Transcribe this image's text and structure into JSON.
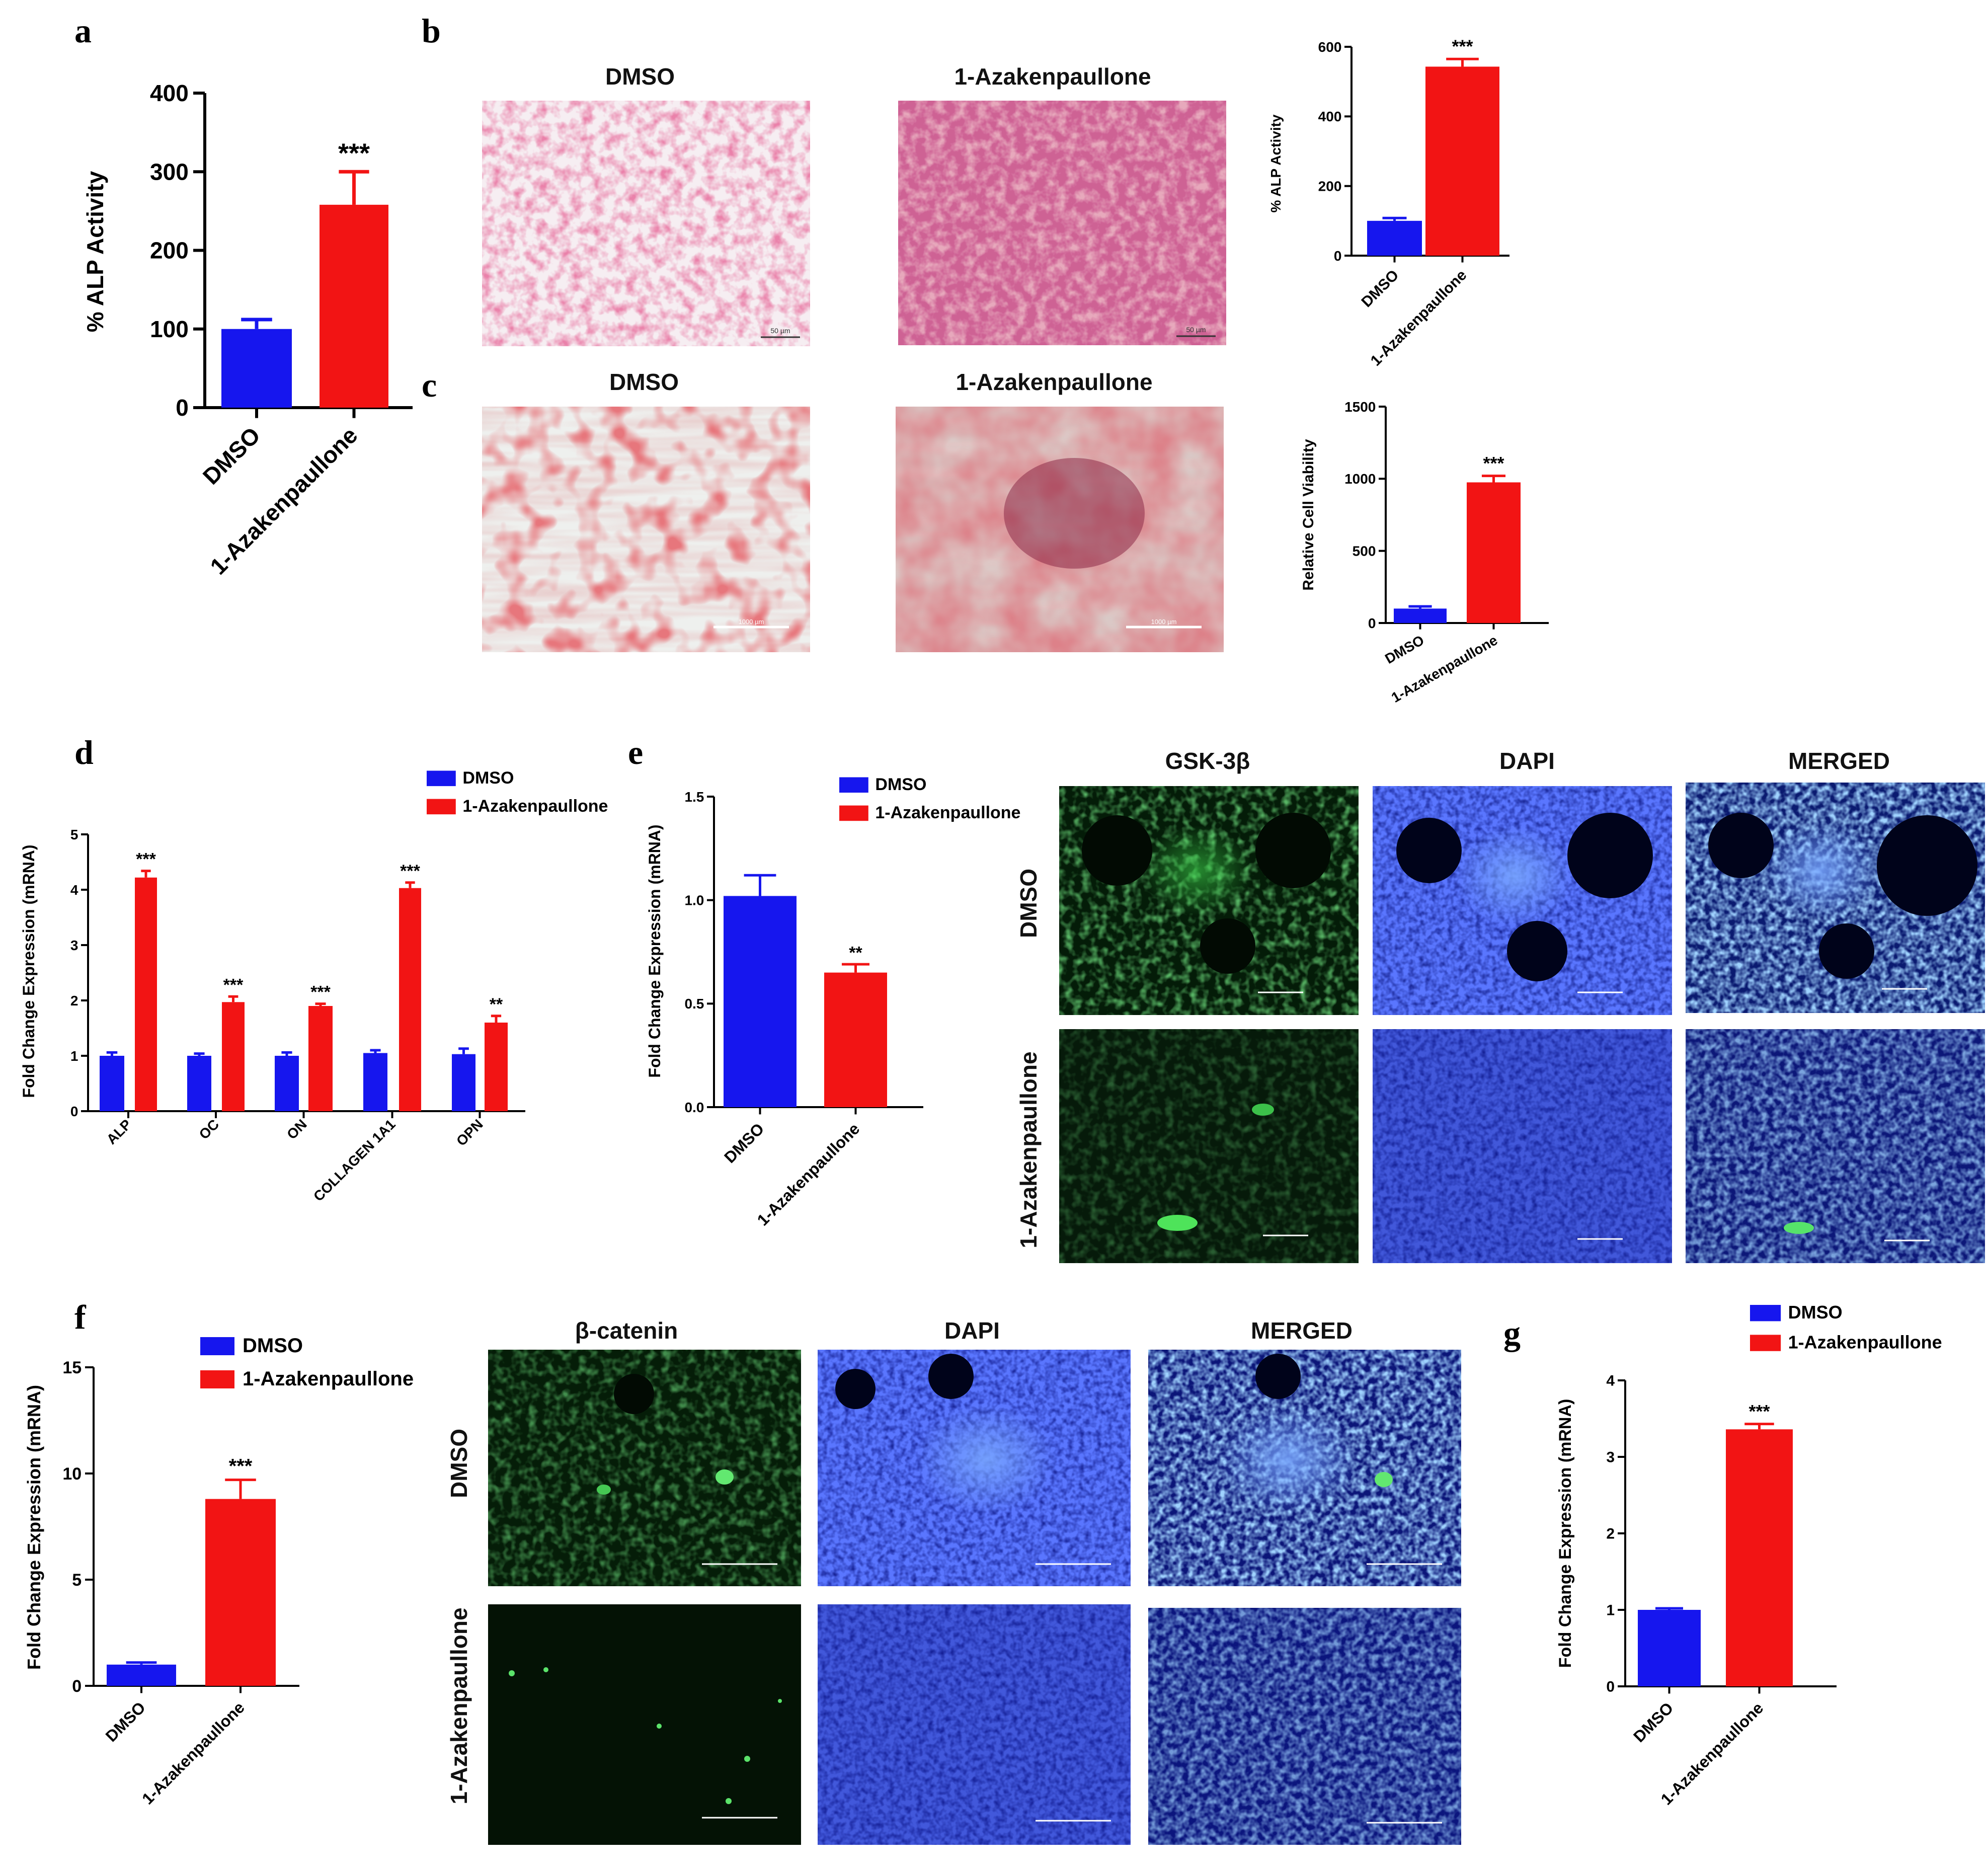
{
  "panel_labels": {
    "a": "a",
    "b": "b",
    "c": "c",
    "d": "d",
    "e": "e",
    "f": "f",
    "g": "g"
  },
  "colors": {
    "dmso": "#1616ee",
    "azk": "#f21414"
  },
  "micrographs": {
    "b": {
      "titles": [
        "DMSO",
        "1-Azakenpaullone"
      ],
      "scale": "50 µm"
    },
    "c": {
      "titles": [
        "DMSO",
        "1-Azakenpaullone"
      ],
      "scale": "1000 µm"
    },
    "e": {
      "columns": [
        "GSK-3β",
        "DAPI",
        "MERGED"
      ],
      "rows": [
        "DMSO",
        "1-Azakenpaullone"
      ]
    },
    "f": {
      "columns": [
        "β-catenin",
        "DAPI",
        "MERGED"
      ],
      "rows": [
        "DMSO",
        "1-Azakenpaullone"
      ]
    }
  },
  "chart_data": [
    {
      "id": "a",
      "type": "bar",
      "categories": [
        "DMSO",
        "1-Azakenpaullone"
      ],
      "values": [
        100,
        258
      ],
      "errors": [
        12,
        42
      ],
      "significance": [
        "",
        "***"
      ],
      "ylabel": "% ALP Activity",
      "yticks": [
        0,
        100,
        200,
        300,
        400
      ],
      "ylim": [
        0,
        400
      ],
      "legend": []
    },
    {
      "id": "b",
      "type": "bar",
      "categories": [
        "DMSO",
        "1-Azakenpaullone"
      ],
      "values": [
        100,
        543
      ],
      "errors": [
        8,
        22
      ],
      "significance": [
        "",
        "***"
      ],
      "ylabel": "% ALP Activity",
      "yticks": [
        0,
        200,
        400,
        600
      ],
      "ylim": [
        0,
        600
      ],
      "legend": []
    },
    {
      "id": "c",
      "type": "bar",
      "categories": [
        "DMSO",
        "1-Azakenpaullone"
      ],
      "values": [
        100,
        975
      ],
      "errors": [
        15,
        45
      ],
      "significance": [
        "",
        "***"
      ],
      "ylabel": "Relative Cell Viability",
      "yticks": [
        0,
        500,
        1000,
        1500
      ],
      "ylim": [
        0,
        1500
      ],
      "legend": []
    },
    {
      "id": "d",
      "type": "bar",
      "categories": [
        "ALP",
        "OC",
        "ON",
        "COLLAGEN 1A1",
        "OPN"
      ],
      "series": [
        {
          "name": "DMSO",
          "values": [
            1.0,
            1.0,
            1.0,
            1.05,
            1.03
          ],
          "errors": [
            0.06,
            0.04,
            0.06,
            0.05,
            0.1
          ]
        },
        {
          "name": "1-Azakenpaullone",
          "values": [
            4.22,
            1.97,
            1.9,
            4.03,
            1.6
          ],
          "errors": [
            0.12,
            0.1,
            0.04,
            0.1,
            0.12
          ]
        }
      ],
      "significance": [
        "***",
        "***",
        "***",
        "***",
        "**"
      ],
      "ylabel": "Fold Change Expression (mRNA)",
      "yticks": [
        0,
        1,
        2,
        3,
        4,
        5
      ],
      "ylim": [
        0,
        5
      ],
      "legend": [
        "DMSO",
        "1-Azakenpaullone"
      ]
    },
    {
      "id": "e",
      "type": "bar",
      "categories": [
        "DMSO",
        "1-Azakenpaullone"
      ],
      "values": [
        1.02,
        0.65
      ],
      "errors": [
        0.1,
        0.04
      ],
      "significance": [
        "",
        "**"
      ],
      "ylabel": "Fold Change Expression (mRNA)",
      "yticks": [
        "0.0",
        "0.5",
        "1.0",
        "1.5"
      ],
      "ylim": [
        0,
        1.5
      ],
      "legend": [
        "DMSO",
        "1-Azakenpaullone"
      ]
    },
    {
      "id": "f",
      "type": "bar",
      "categories": [
        "DMSO",
        "1-Azakenpaullone"
      ],
      "values": [
        1.0,
        8.8
      ],
      "errors": [
        0.1,
        0.9
      ],
      "significance": [
        "",
        "***"
      ],
      "ylabel": "Fold Change Expression (mRNA)",
      "yticks": [
        0,
        5,
        10,
        15
      ],
      "ylim": [
        0,
        15
      ],
      "legend": [
        "DMSO",
        "1-Azakenpaullone"
      ]
    },
    {
      "id": "g",
      "type": "bar",
      "categories": [
        "DMSO",
        "1-Azakenpaullone"
      ],
      "values": [
        1.0,
        3.36
      ],
      "errors": [
        0.02,
        0.07
      ],
      "significance": [
        "",
        "***"
      ],
      "ylabel": "Fold Change Expression (mRNA)",
      "yticks": [
        0,
        1,
        2,
        3,
        4
      ],
      "ylim": [
        0,
        4
      ],
      "legend": [
        "DMSO",
        "1-Azakenpaullone"
      ]
    }
  ]
}
